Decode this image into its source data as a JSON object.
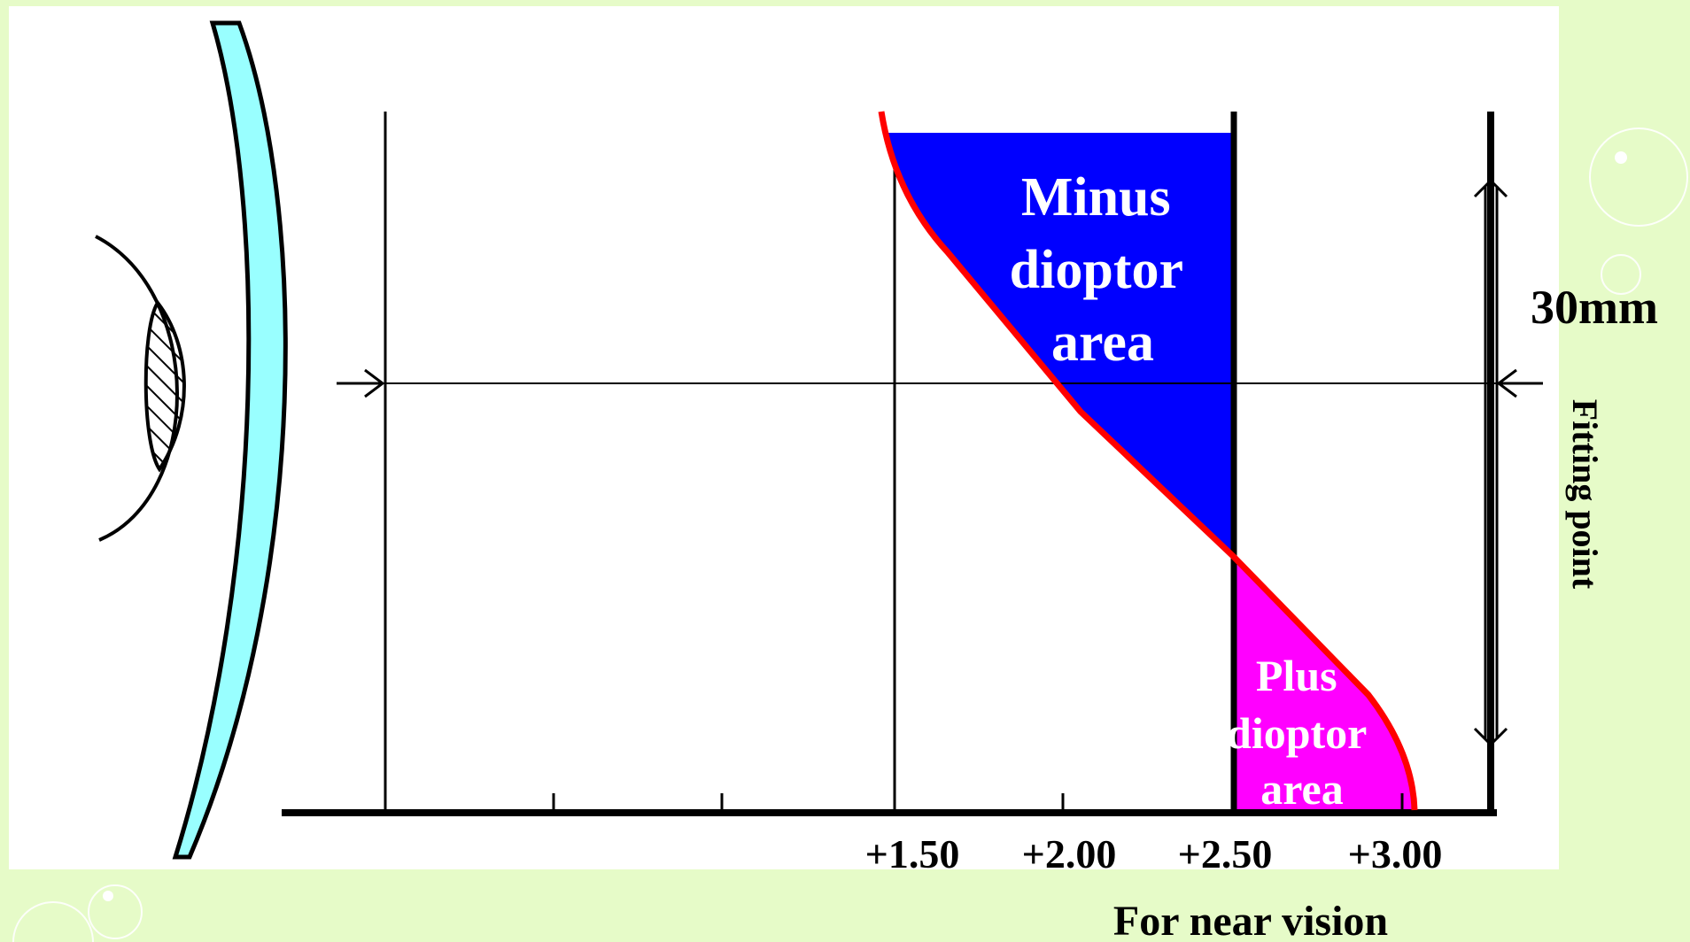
{
  "areas": {
    "minus": {
      "lines": [
        "Minus",
        "dioptor",
        "area"
      ],
      "color": "#0000ff"
    },
    "plus": {
      "lines": [
        "Plus",
        "dioptor",
        "area"
      ],
      "color": "#ff00ff"
    }
  },
  "axis": {
    "tick_labels": [
      "+1.50",
      "+2.00",
      "+2.50",
      "+3.00"
    ],
    "caption": "For near vision"
  },
  "dimension": {
    "label": "30mm"
  },
  "fitting_point": {
    "label": "Fitting point"
  },
  "colors": {
    "background": "#e6fbc8",
    "lens": "#99ffff",
    "power_curve": "#ff0000",
    "decoration": "#ffffff"
  }
}
